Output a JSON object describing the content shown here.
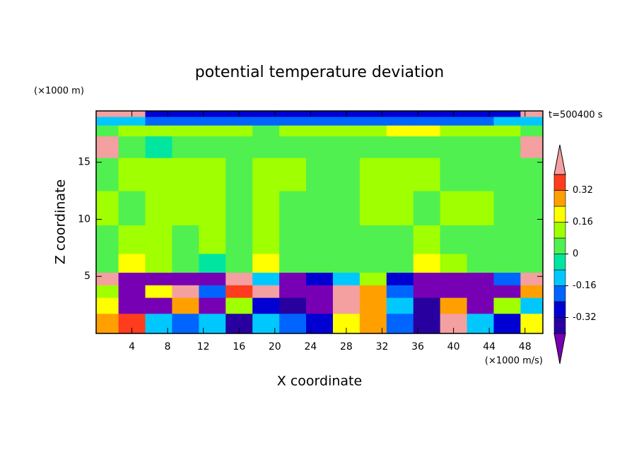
{
  "chart_data": {
    "type": "contour",
    "title": "potential temperature deviation",
    "x_label": "X coordinate",
    "y_label": "Z coordinate",
    "x_unit": "(×1000 m/s)",
    "y_unit": "(×1000 m)",
    "annotation": "t=500400 s",
    "xlim": [
      0,
      50
    ],
    "ylim": [
      0,
      19.5
    ],
    "xticks": [
      4,
      8,
      12,
      16,
      20,
      24,
      28,
      32,
      36,
      40,
      44,
      48
    ],
    "yticks": [
      5,
      10,
      15
    ],
    "x": [
      1,
      4,
      7,
      10,
      13,
      16,
      19,
      22,
      25,
      28,
      31,
      34,
      37,
      40,
      43,
      46,
      49
    ],
    "y": [
      1,
      2.5,
      3.8,
      4.7,
      6,
      8,
      11,
      14,
      16.8,
      17.8,
      18.7,
      19.3
    ],
    "z": [
      [
        0.3,
        0.35,
        -0.1,
        -0.2,
        -0.1,
        -0.35,
        -0.1,
        -0.2,
        -0.3,
        0.2,
        0.3,
        -0.2,
        -0.35,
        0.45,
        -0.1,
        -0.3,
        0.2
      ],
      [
        0.2,
        -0.45,
        -0.45,
        0.3,
        -0.45,
        0.1,
        -0.3,
        -0.35,
        -0.45,
        0.45,
        0.25,
        -0.1,
        -0.35,
        0.3,
        -0.45,
        0.1,
        -0.1
      ],
      [
        0.1,
        -0.45,
        0.2,
        0.45,
        -0.2,
        0.35,
        0.45,
        -0.45,
        -0.45,
        0.45,
        0.3,
        -0.2,
        -0.45,
        -0.45,
        -0.45,
        -0.45,
        0.3
      ],
      [
        0.45,
        -0.45,
        -0.45,
        -0.45,
        -0.45,
        0.45,
        -0.1,
        -0.45,
        -0.3,
        -0.1,
        0.1,
        -0.3,
        -0.45,
        -0.45,
        -0.45,
        -0.2,
        0.45
      ],
      [
        0.04,
        0.2,
        0.1,
        0.04,
        -0.05,
        0.04,
        0.2,
        0.04,
        0.04,
        0.04,
        0.04,
        0.04,
        0.2,
        0.1,
        0.04,
        0.04,
        0.04
      ],
      [
        0.04,
        0.12,
        0.1,
        0.04,
        0.12,
        0.04,
        0.12,
        0.04,
        0.04,
        0.04,
        0.04,
        0.04,
        0.12,
        0.04,
        0.04,
        0.04,
        0.04
      ],
      [
        0.12,
        0.04,
        0.12,
        0.12,
        0.12,
        0.04,
        0.12,
        0.04,
        0.04,
        0.04,
        0.12,
        0.12,
        0.04,
        0.12,
        0.12,
        0.04,
        0.04
      ],
      [
        0.04,
        0.12,
        0.12,
        0.12,
        0.12,
        0.04,
        0.12,
        0.12,
        0.04,
        0.04,
        0.12,
        0.12,
        0.12,
        0.04,
        0.04,
        0.04,
        0.04
      ],
      [
        0.45,
        0.04,
        -0.05,
        0.04,
        0.04,
        0.04,
        0.04,
        0.04,
        0.04,
        0.04,
        0.04,
        0.04,
        0.04,
        0.04,
        0.04,
        0.04,
        0.45
      ],
      [
        0.04,
        0.12,
        0.12,
        0.12,
        0.12,
        0.12,
        0.04,
        0.12,
        0.12,
        0.12,
        0.12,
        0.2,
        0.2,
        0.12,
        0.12,
        0.12,
        0.04
      ],
      [
        -0.12,
        -0.12,
        -0.2,
        -0.2,
        -0.2,
        -0.2,
        -0.2,
        -0.2,
        -0.2,
        -0.2,
        -0.2,
        -0.2,
        -0.2,
        -0.2,
        -0.2,
        -0.12,
        -0.12
      ],
      [
        0.45,
        0.45,
        -0.28,
        -0.28,
        -0.28,
        -0.28,
        -0.28,
        -0.28,
        -0.28,
        -0.28,
        -0.28,
        -0.28,
        -0.28,
        -0.28,
        -0.28,
        -0.28,
        0.45
      ]
    ],
    "levels": [
      -0.4,
      -0.32,
      -0.24,
      -0.16,
      -0.08,
      0,
      0.08,
      0.16,
      0.24,
      0.32,
      0.4
    ],
    "colors": [
      "#7800b4",
      "#2800a0",
      "#0000d2",
      "#0064ff",
      "#00c8ff",
      "#00e6a0",
      "#50f050",
      "#a0ff00",
      "#ffff00",
      "#ffa000",
      "#ff3c1e",
      "#f4a0a0"
    ],
    "colorbar_ticks": [
      0.32,
      0.16,
      0,
      -0.16,
      -0.32
    ]
  }
}
